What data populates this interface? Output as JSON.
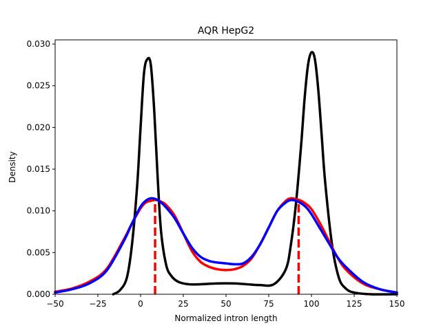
{
  "chart_data": {
    "type": "line",
    "title": "AQR HepG2",
    "xlabel": "Normalized intron length",
    "ylabel": "Density",
    "xlim": [
      -50,
      150
    ],
    "ylim": [
      0,
      0.0305
    ],
    "x_ticks": [
      -50,
      -25,
      0,
      25,
      50,
      75,
      100,
      125,
      150
    ],
    "y_ticks": [
      0.0,
      0.005,
      0.01,
      0.015,
      0.02,
      0.025,
      0.03
    ],
    "x_tick_labels": [
      "−50",
      "−25",
      "0",
      "25",
      "50",
      "75",
      "100",
      "125",
      "150"
    ],
    "y_tick_labels": [
      "0.000",
      "0.005",
      "0.010",
      "0.015",
      "0.020",
      "0.025",
      "0.030"
    ],
    "grid": false,
    "legend": "none",
    "series": [
      {
        "color": "#000000",
        "style": "solid",
        "x": [
          -16,
          -12,
          -8,
          -5,
          -2,
          0,
          2,
          4,
          6,
          8,
          10,
          12,
          15,
          18,
          22,
          28,
          35,
          45,
          55,
          62,
          70,
          78,
          85,
          88,
          91,
          94,
          96,
          98,
          100,
          102,
          104,
          106,
          108,
          112,
          116,
          120,
          125,
          135,
          150
        ],
        "y": [
          0.0,
          0.0005,
          0.002,
          0.006,
          0.013,
          0.02,
          0.0265,
          0.0282,
          0.0275,
          0.022,
          0.014,
          0.0075,
          0.0035,
          0.0022,
          0.0015,
          0.0012,
          0.0012,
          0.0013,
          0.0013,
          0.0012,
          0.0011,
          0.0012,
          0.003,
          0.006,
          0.011,
          0.018,
          0.0235,
          0.0275,
          0.029,
          0.0282,
          0.0245,
          0.019,
          0.0135,
          0.006,
          0.002,
          0.0007,
          0.0002,
          0.0,
          0.0
        ]
      },
      {
        "color": "#ff0000",
        "style": "solid",
        "x": [
          -50,
          -40,
          -30,
          -20,
          -10,
          -5,
          0,
          3,
          6,
          9,
          12,
          15,
          20,
          25,
          30,
          35,
          40,
          45,
          50,
          55,
          60,
          65,
          70,
          75,
          80,
          85,
          88,
          91,
          94,
          97,
          100,
          105,
          110,
          115,
          120,
          130,
          140,
          150
        ],
        "y": [
          0.0003,
          0.0007,
          0.0015,
          0.003,
          0.0065,
          0.0085,
          0.0103,
          0.011,
          0.0112,
          0.0113,
          0.0111,
          0.0107,
          0.0094,
          0.0073,
          0.0052,
          0.0039,
          0.0033,
          0.003,
          0.0029,
          0.003,
          0.0034,
          0.0043,
          0.006,
          0.008,
          0.01,
          0.0112,
          0.0115,
          0.0114,
          0.0112,
          0.0108,
          0.0102,
          0.0085,
          0.0065,
          0.0045,
          0.003,
          0.0013,
          0.0006,
          0.0002
        ]
      },
      {
        "color": "#0000ff",
        "style": "solid",
        "x": [
          -50,
          -40,
          -30,
          -20,
          -10,
          -5,
          0,
          3,
          6,
          9,
          12,
          15,
          20,
          25,
          30,
          35,
          40,
          45,
          50,
          55,
          60,
          65,
          70,
          75,
          80,
          85,
          88,
          91,
          94,
          97,
          100,
          105,
          110,
          115,
          120,
          130,
          140,
          150
        ],
        "y": [
          0.0002,
          0.0006,
          0.0013,
          0.0028,
          0.0063,
          0.0085,
          0.0105,
          0.0112,
          0.0115,
          0.0114,
          0.011,
          0.0104,
          0.0091,
          0.0073,
          0.0056,
          0.0045,
          0.004,
          0.0038,
          0.0037,
          0.0036,
          0.0037,
          0.0045,
          0.006,
          0.008,
          0.01,
          0.011,
          0.0113,
          0.0112,
          0.0109,
          0.0104,
          0.0096,
          0.0079,
          0.0062,
          0.0045,
          0.0033,
          0.0015,
          0.0006,
          0.0002
        ]
      },
      {
        "color": "#ff0000",
        "style": "dashed",
        "x": [
          8.5,
          8.5
        ],
        "y": [
          0.0,
          0.0108
        ]
      },
      {
        "color": "#ff0000",
        "style": "dashed",
        "x": [
          92.5,
          92.5
        ],
        "y": [
          0.0,
          0.011
        ]
      }
    ]
  }
}
